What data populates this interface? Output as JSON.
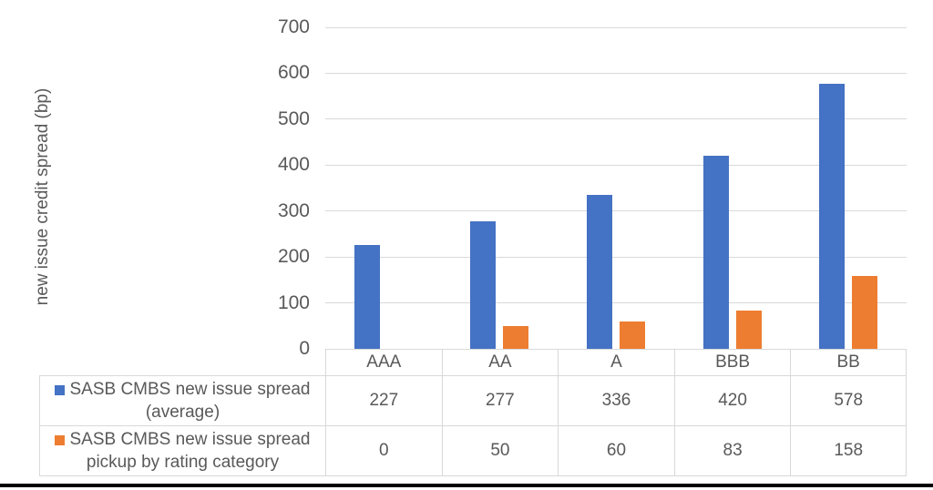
{
  "chart_data": {
    "type": "bar",
    "title": "",
    "xlabel": "",
    "ylabel": "new issue credit spread (bp)",
    "ylim": [
      0,
      700
    ],
    "yticks": [
      0,
      100,
      200,
      300,
      400,
      500,
      600,
      700
    ],
    "grid": "horizontal",
    "legend_position": "data-table-left",
    "data_table_shown": true,
    "categories": [
      "AAA",
      "AA",
      "A",
      "BBB",
      "BB"
    ],
    "series": [
      {
        "name": "SASB CMBS new issue spread (average)",
        "color": "#4472C4",
        "values": [
          227,
          277,
          336,
          420,
          578
        ]
      },
      {
        "name": "SASB CMBS new issue spread pickup by rating category",
        "color": "#ED7D31",
        "values": [
          0,
          50,
          60,
          83,
          158
        ]
      }
    ]
  },
  "colors": {
    "text": "#595959",
    "gridline": "#D9D9D9",
    "table_border": "#D9D9D9",
    "background": "#FFFFFF",
    "bottom_rule": "#000000"
  }
}
